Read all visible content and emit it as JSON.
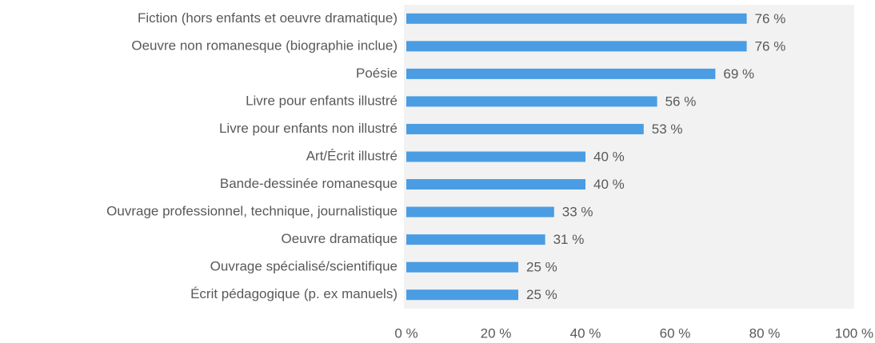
{
  "chart_data": {
    "type": "hbar",
    "categories": [
      "Fiction (hors enfants et oeuvre dramatique)",
      "Oeuvre non romanesque (biographie inclue)",
      "Poésie",
      "Livre pour enfants illustré",
      "Livre pour enfants non illustré",
      "Art/Écrit illustré",
      "Bande-dessinée romanesque",
      "Ouvrage professionnel, technique, journalistique",
      "Oeuvre dramatique",
      "Ouvrage spécialisé/scientifique",
      "Écrit pédagogique (p. ex manuels)"
    ],
    "values": [
      76,
      76,
      69,
      56,
      53,
      40,
      40,
      33,
      31,
      25,
      25
    ],
    "value_labels": [
      "76 %",
      "76 %",
      "69 %",
      "56 %",
      "53 %",
      "40 %",
      "40 %",
      "33 %",
      "31 %",
      "25 %",
      "25 %"
    ],
    "color": "#4a9de3",
    "xlim": [
      0,
      100
    ],
    "xticks": [
      {
        "value": 0,
        "label": "0 %"
      },
      {
        "value": 20,
        "label": "20 %"
      },
      {
        "value": 40,
        "label": "40 %"
      },
      {
        "value": 60,
        "label": "60 %"
      },
      {
        "value": 80,
        "label": "80 %"
      },
      {
        "value": 100,
        "label": "100 %"
      }
    ],
    "grid": false
  }
}
